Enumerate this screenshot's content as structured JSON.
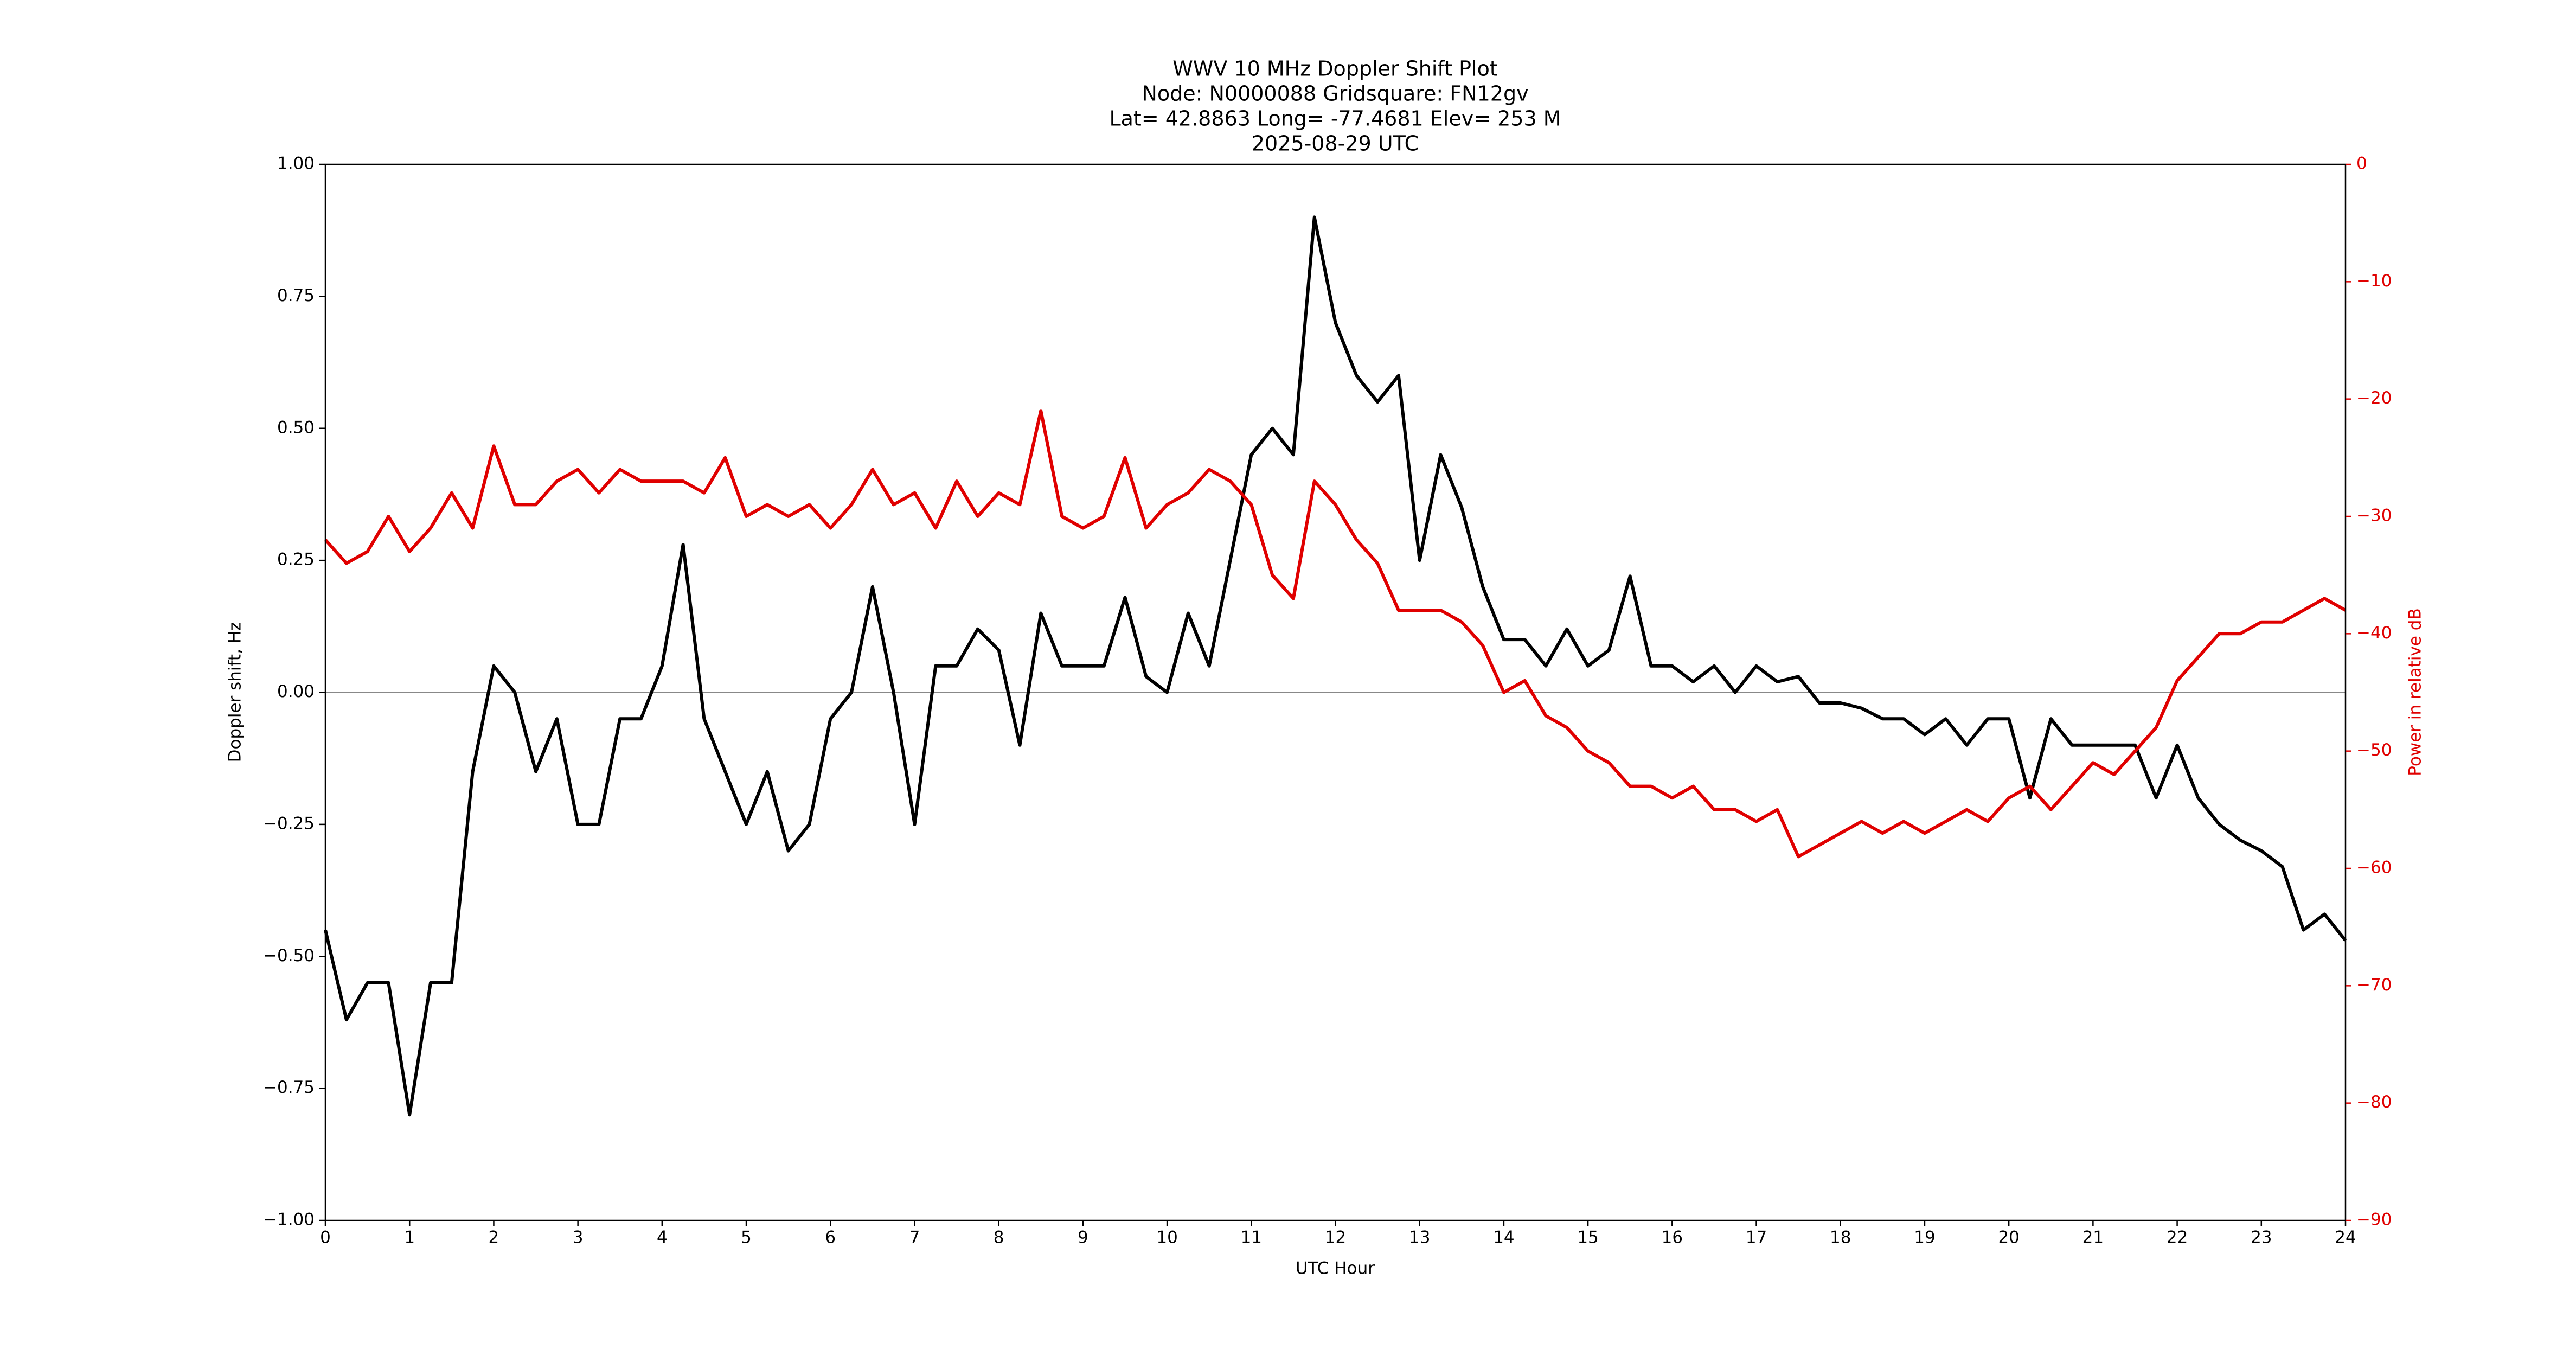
{
  "chart_data": {
    "type": "line",
    "title": [
      "WWV 10 MHz Doppler Shift Plot",
      "Node:  N0000088     Gridsquare:  FN12gv",
      "Lat= 42.8863    Long= -77.4681    Elev= 253 M",
      "2025-08-29  UTC"
    ],
    "xlabel": "UTC Hour",
    "ylabel": "Doppler shift, Hz",
    "y2label": "Power in relative dB",
    "y2color": "#e00000",
    "hline": 0,
    "xlim": [
      0,
      24
    ],
    "xticks": [
      0,
      1,
      2,
      3,
      4,
      5,
      6,
      7,
      8,
      9,
      10,
      11,
      12,
      13,
      14,
      15,
      16,
      17,
      18,
      19,
      20,
      21,
      22,
      23,
      24
    ],
    "ylim": [
      -1,
      1
    ],
    "yticks": [
      {
        "value": -1,
        "label": "−1.00"
      },
      {
        "value": -0.75,
        "label": "−0.75"
      },
      {
        "value": -0.5,
        "label": "−0.50"
      },
      {
        "value": -0.25,
        "label": "−0.25"
      },
      {
        "value": 0,
        "label": "0.00"
      },
      {
        "value": 0.25,
        "label": "0.25"
      },
      {
        "value": 0.5,
        "label": "0.50"
      },
      {
        "value": 0.75,
        "label": "0.75"
      },
      {
        "value": 1,
        "label": "1.00"
      }
    ],
    "y2lim": [
      -90,
      0
    ],
    "y2ticks": [
      {
        "value": -90,
        "label": "−90"
      },
      {
        "value": -80,
        "label": "−80"
      },
      {
        "value": -70,
        "label": "−70"
      },
      {
        "value": -60,
        "label": "−60"
      },
      {
        "value": -50,
        "label": "−50"
      },
      {
        "value": -40,
        "label": "−40"
      },
      {
        "value": -30,
        "label": "−30"
      },
      {
        "value": -20,
        "label": "−20"
      },
      {
        "value": -10,
        "label": "−10"
      },
      0
    ],
    "x": [
      0,
      0.25,
      0.5,
      0.75,
      1,
      1.25,
      1.5,
      1.75,
      2,
      2.25,
      2.5,
      2.75,
      3,
      3.25,
      3.5,
      3.75,
      4,
      4.25,
      4.5,
      4.75,
      5,
      5.25,
      5.5,
      5.75,
      6,
      6.25,
      6.5,
      6.75,
      7,
      7.25,
      7.5,
      7.75,
      8,
      8.25,
      8.5,
      8.75,
      9,
      9.25,
      9.5,
      9.75,
      10,
      10.25,
      10.5,
      10.75,
      11,
      11.25,
      11.5,
      11.75,
      12,
      12.25,
      12.5,
      12.75,
      13,
      13.25,
      13.5,
      13.75,
      14,
      14.25,
      14.5,
      14.75,
      15,
      15.25,
      15.5,
      15.75,
      16,
      16.25,
      16.5,
      16.75,
      17,
      17.25,
      17.5,
      17.75,
      18,
      18.25,
      18.5,
      18.75,
      19,
      19.25,
      19.5,
      19.75,
      20,
      20.25,
      20.5,
      20.75,
      21,
      21.25,
      21.5,
      21.75,
      22,
      22.25,
      22.5,
      22.75,
      23,
      23.25,
      23.5,
      23.75,
      24
    ],
    "series": [
      {
        "color": "#000000",
        "axis": "y",
        "values": [
          -0.45,
          -0.62,
          -0.55,
          -0.55,
          -0.8,
          -0.55,
          -0.55,
          -0.15,
          0.05,
          0.0,
          -0.15,
          -0.05,
          -0.25,
          -0.25,
          -0.05,
          -0.05,
          0.05,
          0.28,
          -0.05,
          -0.15,
          -0.25,
          -0.15,
          -0.3,
          -0.25,
          -0.05,
          0.0,
          0.2,
          0.0,
          -0.25,
          0.05,
          0.05,
          0.12,
          0.08,
          -0.1,
          0.15,
          0.05,
          0.05,
          0.05,
          0.18,
          0.03,
          0.0,
          0.15,
          0.05,
          0.25,
          0.45,
          0.5,
          0.45,
          0.9,
          0.7,
          0.6,
          0.55,
          0.6,
          0.25,
          0.45,
          0.35,
          0.2,
          0.1,
          0.1,
          0.05,
          0.12,
          0.05,
          0.08,
          0.22,
          0.05,
          0.05,
          0.02,
          0.05,
          0.0,
          0.05,
          0.02,
          0.03,
          -0.02,
          -0.02,
          -0.03,
          -0.05,
          -0.05,
          -0.08,
          -0.05,
          -0.1,
          -0.05,
          -0.05,
          -0.2,
          -0.05,
          -0.1,
          -0.1,
          -0.1,
          -0.1,
          -0.2,
          -0.1,
          -0.2,
          -0.25,
          -0.28,
          -0.3,
          -0.33,
          -0.45,
          -0.42,
          -0.47
        ]
      },
      {
        "color": "#e00000",
        "axis": "y2",
        "values": [
          -32,
          -34,
          -33,
          -30,
          -33,
          -31,
          -28,
          -31,
          -24,
          -29,
          -29,
          -27,
          -26,
          -28,
          -26,
          -27,
          -27,
          -27,
          -28,
          -25,
          -30,
          -29,
          -30,
          -29,
          -31,
          -29,
          -26,
          -29,
          -28,
          -31,
          -27,
          -30,
          -28,
          -29,
          -21,
          -30,
          -31,
          -30,
          -25,
          -31,
          -29,
          -28,
          -26,
          -27,
          -29,
          -35,
          -37,
          -27,
          -29,
          -32,
          -34,
          -38,
          -38,
          -38,
          -39,
          -41,
          -45,
          -44,
          -47,
          -48,
          -50,
          -51,
          -53,
          -53,
          -54,
          -53,
          -55,
          -55,
          -56,
          -55,
          -59,
          -58,
          -57,
          -56,
          -57,
          -56,
          -57,
          -56,
          -55,
          -56,
          -54,
          -53,
          -55,
          -53,
          -51,
          -52,
          -50,
          -48,
          -44,
          -42,
          -40,
          -40,
          -39,
          -39,
          -38,
          -37,
          -38
        ]
      }
    ]
  }
}
